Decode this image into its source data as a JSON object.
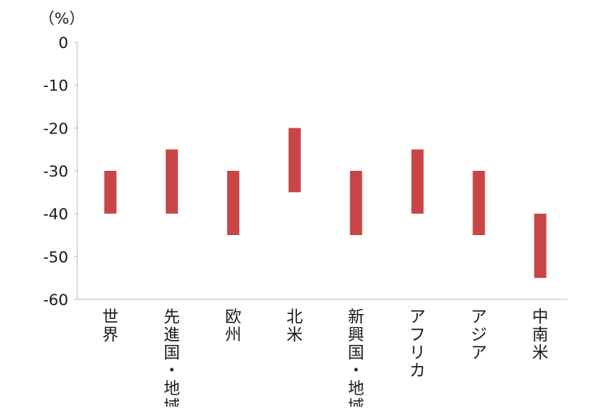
{
  "chart_data": {
    "type": "bar",
    "unit": "（%）",
    "categories": [
      "世界",
      "先進国・地域",
      "欧州",
      "北米",
      "新興国・地域",
      "アフリカ",
      "アジア",
      "中南米"
    ],
    "series": [
      {
        "ranges": [
          [
            -40,
            -30
          ],
          [
            -40,
            -25
          ],
          [
            -45,
            -30
          ],
          [
            -35,
            -20
          ],
          [
            -45,
            -30
          ],
          [
            -40,
            -25
          ],
          [
            -45,
            -30
          ],
          [
            -55,
            -40
          ]
        ]
      }
    ],
    "ylim": [
      -60,
      0
    ],
    "yticks": [
      0,
      -10,
      -20,
      -30,
      -40,
      -50,
      -60
    ],
    "grid": false,
    "colors": {
      "bar": "#c94545",
      "axis": "#bfbfbf",
      "text": "#1a1a1a"
    }
  }
}
